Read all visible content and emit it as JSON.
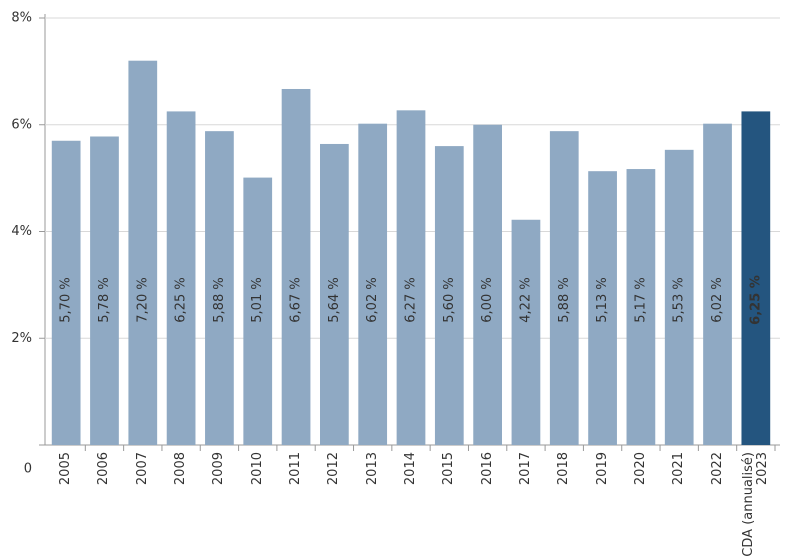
{
  "chart_data": {
    "type": "bar",
    "categories": [
      "2005",
      "2006",
      "2007",
      "2008",
      "2009",
      "2010",
      "2011",
      "2012",
      "2013",
      "2014",
      "2015",
      "2016",
      "2017",
      "2018",
      "2019",
      "2020",
      "2021",
      "2022",
      "CDA (annualisé)\n2023"
    ],
    "values": [
      5.7,
      5.78,
      7.2,
      6.25,
      5.88,
      5.01,
      6.67,
      5.64,
      6.02,
      6.27,
      5.6,
      6.0,
      4.22,
      5.88,
      5.13,
      5.17,
      5.53,
      6.02,
      6.25
    ],
    "value_labels": [
      "5,70 %",
      "5,78 %",
      "7,20 %",
      "6,25 %",
      "5,88 %",
      "5,01 %",
      "6,67 %",
      "5,64 %",
      "6,02 %",
      "6,27 %",
      "5,60 %",
      "6,00 %",
      "4,22 %",
      "5,88 %",
      "5,13 %",
      "5,17 %",
      "5,53 %",
      "6,02 %",
      "6,25 %"
    ],
    "color": "#8fa9c3",
    "highlight_color": "#24557f",
    "highlight_index": 18,
    "ylim": [
      0,
      8
    ],
    "yticks": [
      0,
      {
        "value": 2,
        "label": "2%"
      },
      {
        "value": 4,
        "label": "4%"
      },
      {
        "value": 6,
        "label": "6%"
      },
      {
        "value": 8,
        "label": "8%"
      }
    ],
    "grid": true
  }
}
